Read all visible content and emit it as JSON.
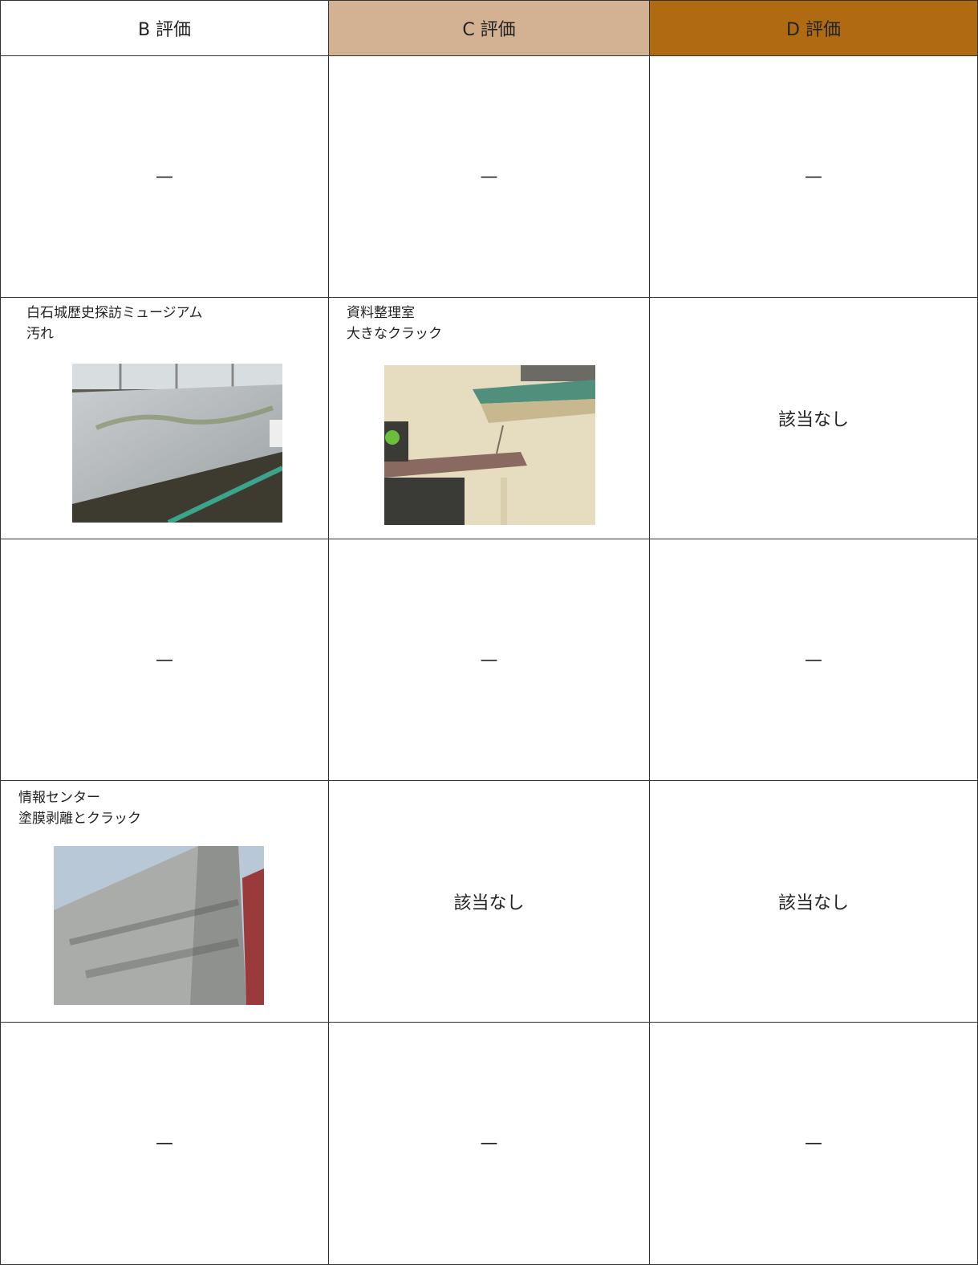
{
  "table": {
    "header": [
      "B 評価",
      "C 評価",
      "D 評価"
    ],
    "rows": [
      [
        "—",
        "—",
        "—"
      ],
      [
        [
          "白石城歴史探訪ミュージアム",
          "汚れ"
        ],
        [
          "資料整理室",
          "大きなクラック"
        ],
        "該当なし"
      ],
      [
        "—",
        "—",
        "—"
      ],
      [
        [
          "情報センター",
          "塗膜剥離とクラック"
        ],
        "該当なし",
        "該当なし"
      ],
      [
        "—",
        "—",
        "—"
      ]
    ]
  }
}
